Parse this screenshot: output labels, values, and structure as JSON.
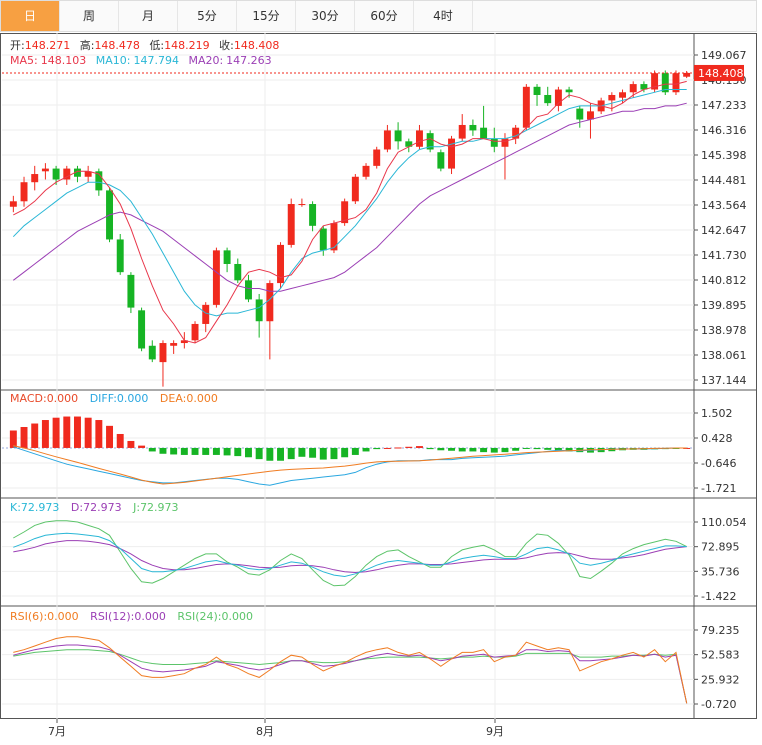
{
  "tabs": [
    "日",
    "周",
    "月",
    "5分",
    "15分",
    "30分",
    "60分",
    "4时"
  ],
  "active_tab": 0,
  "ohlc": {
    "open_label": "开:",
    "open": "148.271",
    "high_label": "高:",
    "high": "148.478",
    "low_label": "低:",
    "low": "148.219",
    "close_label": "收:",
    "close": "148.408"
  },
  "ma": {
    "ma5_label": "MA5:",
    "ma5": "148.103",
    "ma10_label": "MA10:",
    "ma10": "147.794",
    "ma20_label": "MA20:",
    "ma20": "147.263"
  },
  "macd": {
    "macd_label": "MACD:",
    "macd": "0.000",
    "diff_label": "DIFF:",
    "diff": "0.000",
    "dea_label": "DEA:",
    "dea": "0.000"
  },
  "kdj": {
    "k_label": "K:",
    "k": "72.973",
    "d_label": "D:",
    "d": "72.973",
    "j_label": "J:",
    "j": "72.973"
  },
  "rsi": {
    "r6_label": "RSI(6):",
    "r6": "0.000",
    "r12_label": "RSI(12):",
    "r12": "0.000",
    "r24_label": "RSI(24):",
    "r24": "0.000"
  },
  "colors": {
    "up": "#f02a1e",
    "down": "#16b424",
    "ma5": "#e8364a",
    "ma10": "#2ab7d6",
    "ma20": "#9b3fb5",
    "macd": "#e84a2a",
    "diff": "#2aa7e0",
    "dea": "#f07c22",
    "k": "#2ab7d6",
    "d": "#9b3fb5",
    "j": "#5cc46a",
    "r6": "#f07c22",
    "r12": "#9b3fb5",
    "r24": "#5cc46a",
    "price_tag": "#f02a1e"
  },
  "chart_data": {
    "type": "candlestick",
    "price_axis_ticks": [
      "149.067",
      "148.150",
      "147.233",
      "146.316",
      "145.398",
      "144.481",
      "143.564",
      "142.647",
      "141.730",
      "140.812",
      "139.895",
      "138.978",
      "138.061",
      "137.144"
    ],
    "price_tag": "148.408",
    "macd_axis_ticks": [
      "1.502",
      "0.428",
      "-0.646",
      "-1.721"
    ],
    "kdj_axis_ticks": [
      "110.054",
      "72.895",
      "35.736",
      "-1.422"
    ],
    "rsi_axis_ticks": [
      "79.235",
      "52.583",
      "25.932",
      "-0.720"
    ],
    "x_ticks": [
      "7月",
      "8月",
      "9月"
    ],
    "price_range": [
      136.85,
      149.5
    ],
    "candles": [
      [
        143.5,
        143.9,
        143.3,
        143.7
      ],
      [
        143.7,
        144.6,
        143.5,
        144.4
      ],
      [
        144.4,
        145.0,
        144.1,
        144.7
      ],
      [
        144.8,
        145.1,
        144.5,
        144.9
      ],
      [
        144.9,
        145.0,
        144.3,
        144.5
      ],
      [
        144.5,
        145.0,
        144.3,
        144.9
      ],
      [
        144.9,
        145.0,
        144.4,
        144.6
      ],
      [
        144.6,
        145.0,
        144.4,
        144.8
      ],
      [
        144.8,
        144.9,
        143.9,
        144.1
      ],
      [
        144.1,
        144.2,
        142.2,
        142.3
      ],
      [
        142.3,
        142.5,
        141.0,
        141.1
      ],
      [
        141.0,
        141.1,
        139.6,
        139.8
      ],
      [
        139.7,
        139.8,
        138.2,
        138.3
      ],
      [
        138.4,
        138.6,
        137.8,
        137.9
      ],
      [
        137.8,
        138.6,
        136.9,
        138.5
      ],
      [
        138.4,
        138.6,
        138.1,
        138.5
      ],
      [
        138.5,
        138.9,
        138.3,
        138.6
      ],
      [
        138.6,
        139.3,
        138.5,
        139.2
      ],
      [
        139.2,
        140.0,
        138.9,
        139.9
      ],
      [
        139.9,
        142.0,
        139.8,
        141.9
      ],
      [
        141.9,
        142.0,
        141.1,
        141.4
      ],
      [
        141.4,
        141.6,
        140.7,
        140.8
      ],
      [
        140.8,
        141.0,
        140.0,
        140.1
      ],
      [
        140.1,
        140.3,
        138.7,
        139.3
      ],
      [
        139.3,
        140.8,
        137.9,
        140.7
      ],
      [
        140.7,
        142.2,
        140.5,
        142.1
      ],
      [
        142.1,
        143.8,
        142.0,
        143.6
      ],
      [
        143.6,
        143.8,
        143.5,
        143.6
      ],
      [
        143.6,
        143.7,
        142.6,
        142.8
      ],
      [
        142.7,
        142.8,
        141.7,
        141.9
      ],
      [
        141.9,
        143.0,
        141.8,
        142.9
      ],
      [
        142.9,
        143.8,
        142.8,
        143.7
      ],
      [
        143.7,
        144.7,
        143.6,
        144.6
      ],
      [
        144.6,
        145.1,
        144.5,
        145.0
      ],
      [
        145.0,
        145.7,
        144.9,
        145.6
      ],
      [
        145.6,
        146.5,
        145.5,
        146.3
      ],
      [
        146.3,
        146.6,
        145.6,
        145.9
      ],
      [
        145.9,
        146.0,
        145.5,
        145.7
      ],
      [
        145.7,
        146.5,
        145.6,
        146.3
      ],
      [
        146.2,
        146.3,
        145.5,
        145.6
      ],
      [
        145.5,
        145.6,
        144.8,
        144.9
      ],
      [
        144.9,
        146.1,
        144.7,
        146.0
      ],
      [
        146.0,
        146.9,
        145.9,
        146.5
      ],
      [
        146.5,
        146.7,
        146.1,
        146.3
      ],
      [
        146.4,
        147.2,
        146.0,
        146.0
      ],
      [
        146.0,
        146.4,
        145.5,
        145.7
      ],
      [
        145.7,
        146.2,
        144.5,
        146.0
      ],
      [
        146.0,
        146.5,
        145.8,
        146.4
      ],
      [
        146.4,
        148.0,
        146.3,
        147.9
      ],
      [
        147.9,
        148.0,
        147.2,
        147.6
      ],
      [
        147.6,
        147.9,
        147.2,
        147.3
      ],
      [
        147.2,
        147.9,
        147.0,
        147.8
      ],
      [
        147.8,
        147.9,
        147.5,
        147.7
      ],
      [
        147.1,
        147.2,
        146.4,
        146.7
      ],
      [
        146.7,
        147.3,
        146.0,
        147.0
      ],
      [
        147.0,
        147.5,
        146.9,
        147.4
      ],
      [
        147.4,
        147.7,
        147.0,
        147.6
      ],
      [
        147.5,
        147.8,
        147.3,
        147.7
      ],
      [
        147.7,
        148.1,
        147.5,
        148.0
      ],
      [
        148.0,
        148.1,
        147.7,
        147.8
      ],
      [
        147.8,
        148.5,
        147.7,
        148.4
      ],
      [
        148.4,
        148.5,
        147.6,
        147.7
      ],
      [
        147.7,
        148.5,
        147.6,
        148.4
      ],
      [
        148.27,
        148.48,
        148.22,
        148.41
      ]
    ],
    "ma5": [
      143.2,
      143.4,
      143.7,
      144.1,
      144.4,
      144.6,
      144.8,
      144.8,
      144.7,
      144.2,
      143.6,
      142.7,
      141.6,
      140.6,
      139.7,
      139.2,
      138.6,
      138.5,
      138.7,
      139.3,
      139.9,
      140.6,
      141.1,
      141.2,
      141.1,
      140.9,
      141.0,
      141.5,
      142.3,
      142.8,
      142.9,
      143.0,
      143.1,
      143.4,
      144.0,
      144.9,
      145.5,
      145.7,
      145.9,
      146.0,
      145.8,
      145.7,
      145.8,
      146.0,
      146.0,
      145.9,
      145.9,
      146.0,
      146.4,
      146.8,
      146.9,
      147.3,
      147.6,
      147.5,
      147.3,
      147.2,
      147.1,
      147.3,
      147.6,
      147.8,
      147.9,
      148.0,
      148.0,
      148.1
    ],
    "ma10": [
      142.4,
      142.8,
      143.1,
      143.4,
      143.7,
      144.0,
      144.2,
      144.4,
      144.4,
      144.3,
      144.1,
      143.7,
      143.1,
      142.5,
      141.8,
      141.1,
      140.4,
      139.9,
      139.6,
      139.5,
      139.6,
      139.6,
      139.7,
      139.8,
      140.1,
      140.5,
      141.1,
      141.6,
      141.8,
      141.9,
      142.0,
      142.4,
      142.8,
      143.3,
      143.8,
      144.4,
      144.9,
      145.3,
      145.6,
      145.7,
      145.7,
      145.8,
      145.9,
      145.9,
      146.0,
      146.0,
      146.0,
      146.1,
      146.3,
      146.5,
      146.7,
      146.9,
      147.1,
      147.2,
      147.2,
      147.2,
      147.3,
      147.4,
      147.5,
      147.6,
      147.7,
      147.8,
      147.8,
      147.8
    ],
    "ma20": [
      140.8,
      141.1,
      141.4,
      141.7,
      142.0,
      142.3,
      142.6,
      142.8,
      143.0,
      143.2,
      143.3,
      143.2,
      143.0,
      142.8,
      142.6,
      142.3,
      142.0,
      141.7,
      141.4,
      141.1,
      140.8,
      140.6,
      140.5,
      140.5,
      140.4,
      140.4,
      140.5,
      140.6,
      140.7,
      140.8,
      140.9,
      141.1,
      141.4,
      141.7,
      142.0,
      142.4,
      142.8,
      143.2,
      143.6,
      143.9,
      144.1,
      144.3,
      144.5,
      144.7,
      144.9,
      145.1,
      145.3,
      145.5,
      145.7,
      145.9,
      146.1,
      146.3,
      146.5,
      146.6,
      146.7,
      146.8,
      146.9,
      147.0,
      147.0,
      147.1,
      147.1,
      147.2,
      147.2,
      147.3
    ],
    "macd_range": [
      -1.85,
      1.6
    ],
    "macd_hist": [
      0.75,
      0.9,
      1.05,
      1.2,
      1.3,
      1.35,
      1.35,
      1.3,
      1.2,
      0.95,
      0.6,
      0.3,
      0.1,
      -0.15,
      -0.25,
      -0.28,
      -0.3,
      -0.3,
      -0.3,
      -0.3,
      -0.32,
      -0.35,
      -0.4,
      -0.48,
      -0.55,
      -0.55,
      -0.48,
      -0.38,
      -0.42,
      -0.5,
      -0.48,
      -0.4,
      -0.3,
      -0.15,
      -0.05,
      0.0,
      0.02,
      0.05,
      0.08,
      -0.05,
      -0.1,
      -0.12,
      -0.15,
      -0.15,
      -0.18,
      -0.2,
      -0.18,
      -0.12,
      -0.02,
      -0.05,
      -0.08,
      -0.12,
      -0.15,
      -0.18,
      -0.2,
      -0.18,
      -0.14,
      -0.1,
      -0.08,
      -0.08,
      -0.06,
      -0.05,
      -0.02,
      0.0
    ],
    "macd_diff": [
      0.05,
      -0.1,
      -0.25,
      -0.4,
      -0.55,
      -0.7,
      -0.8,
      -0.9,
      -1.0,
      -1.1,
      -1.2,
      -1.3,
      -1.4,
      -1.45,
      -1.5,
      -1.5,
      -1.45,
      -1.4,
      -1.35,
      -1.3,
      -1.3,
      -1.35,
      -1.45,
      -1.55,
      -1.6,
      -1.5,
      -1.4,
      -1.35,
      -1.3,
      -1.25,
      -1.2,
      -1.15,
      -1.05,
      -0.85,
      -0.7,
      -0.6,
      -0.55,
      -0.55,
      -0.55,
      -0.5,
      -0.5,
      -0.5,
      -0.45,
      -0.42,
      -0.4,
      -0.38,
      -0.35,
      -0.3,
      -0.25,
      -0.2,
      -0.15,
      -0.1,
      -0.12,
      -0.12,
      -0.1,
      -0.08,
      -0.05,
      -0.05,
      -0.04,
      -0.04,
      -0.03,
      -0.02,
      0.0,
      0.0
    ],
    "macd_dea": [
      0.1,
      0.0,
      -0.12,
      -0.25,
      -0.38,
      -0.5,
      -0.62,
      -0.75,
      -0.88,
      -1.0,
      -1.12,
      -1.25,
      -1.38,
      -1.48,
      -1.55,
      -1.52,
      -1.48,
      -1.42,
      -1.36,
      -1.3,
      -1.24,
      -1.18,
      -1.12,
      -1.06,
      -1.0,
      -0.95,
      -0.92,
      -0.9,
      -0.88,
      -0.86,
      -0.82,
      -0.78,
      -0.72,
      -0.65,
      -0.6,
      -0.58,
      -0.57,
      -0.56,
      -0.55,
      -0.52,
      -0.48,
      -0.44,
      -0.4,
      -0.36,
      -0.33,
      -0.3,
      -0.27,
      -0.24,
      -0.2,
      -0.18,
      -0.16,
      -0.14,
      -0.12,
      -0.1,
      -0.08,
      -0.07,
      -0.06,
      -0.05,
      -0.04,
      -0.03,
      -0.02,
      -0.01,
      0.0,
      0.0
    ],
    "kdj_range": [
      -8,
      118
    ],
    "kdj_k": [
      72,
      78,
      85,
      90,
      92,
      93,
      92,
      90,
      88,
      82,
      70,
      55,
      40,
      35,
      35,
      37,
      40,
      45,
      50,
      52,
      48,
      45,
      40,
      38,
      40,
      45,
      50,
      48,
      42,
      35,
      30,
      28,
      32,
      38,
      45,
      50,
      52,
      50,
      48,
      45,
      45,
      50,
      55,
      58,
      60,
      58,
      55,
      55,
      62,
      70,
      72,
      68,
      62,
      48,
      45,
      48,
      52,
      58,
      62,
      66,
      70,
      74,
      74,
      73
    ],
    "kdj_d": [
      65,
      68,
      72,
      77,
      80,
      82,
      82,
      81,
      79,
      76,
      70,
      62,
      52,
      45,
      40,
      38,
      38,
      40,
      43,
      46,
      47,
      46,
      44,
      42,
      41,
      42,
      44,
      45,
      44,
      42,
      38,
      35,
      34,
      35,
      38,
      42,
      45,
      47,
      47,
      46,
      46,
      47,
      49,
      51,
      53,
      54,
      54,
      54,
      56,
      60,
      63,
      64,
      63,
      59,
      55,
      54,
      54,
      56,
      58,
      61,
      65,
      69,
      71,
      73
    ],
    "kdj_j": [
      86,
      95,
      105,
      110,
      112,
      112,
      110,
      105,
      100,
      90,
      65,
      40,
      20,
      18,
      25,
      35,
      45,
      55,
      62,
      62,
      50,
      42,
      32,
      30,
      38,
      52,
      62,
      55,
      38,
      22,
      14,
      15,
      28,
      45,
      58,
      66,
      68,
      58,
      50,
      42,
      42,
      58,
      68,
      72,
      75,
      68,
      58,
      58,
      78,
      92,
      90,
      78,
      60,
      28,
      25,
      36,
      48,
      62,
      70,
      76,
      80,
      84,
      81,
      73
    ],
    "rsi_range": [
      -3,
      85
    ],
    "rsi6": [
      55,
      58,
      62,
      66,
      70,
      72,
      72,
      70,
      68,
      60,
      50,
      40,
      30,
      28,
      28,
      30,
      32,
      38,
      42,
      50,
      42,
      38,
      32,
      28,
      36,
      45,
      52,
      50,
      42,
      35,
      40,
      44,
      50,
      55,
      58,
      60,
      55,
      52,
      55,
      48,
      40,
      48,
      55,
      55,
      58,
      45,
      50,
      52,
      66,
      62,
      58,
      60,
      58,
      35,
      40,
      45,
      48,
      52,
      55,
      50,
      58,
      45,
      55,
      0
    ],
    "rsi12": [
      52,
      55,
      58,
      60,
      62,
      63,
      63,
      62,
      61,
      58,
      52,
      45,
      38,
      35,
      34,
      35,
      36,
      38,
      40,
      45,
      43,
      41,
      38,
      36,
      38,
      42,
      46,
      46,
      43,
      40,
      41,
      43,
      46,
      49,
      52,
      54,
      52,
      51,
      52,
      49,
      46,
      48,
      51,
      52,
      53,
      50,
      51,
      52,
      58,
      58,
      56,
      57,
      56,
      46,
      46,
      47,
      48,
      50,
      52,
      51,
      53,
      50,
      52,
      0
    ],
    "rsi24": [
      51,
      53,
      55,
      56,
      57,
      58,
      58,
      58,
      57,
      56,
      53,
      49,
      45,
      43,
      42,
      42,
      42,
      43,
      44,
      46,
      45,
      44,
      43,
      42,
      43,
      44,
      46,
      46,
      45,
      44,
      44,
      45,
      46,
      48,
      49,
      50,
      50,
      50,
      50,
      49,
      48,
      49,
      50,
      50,
      51,
      50,
      50,
      51,
      54,
      54,
      54,
      54,
      54,
      50,
      50,
      50,
      51,
      51,
      52,
      52,
      53,
      52,
      53,
      0
    ]
  }
}
